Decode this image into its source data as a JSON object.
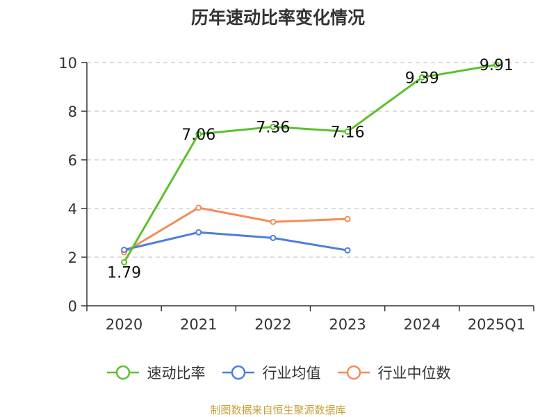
{
  "chart_data": {
    "type": "line",
    "title": "历年速动比率变化情况",
    "categories": [
      "2020",
      "2021",
      "2022",
      "2023",
      "2024",
      "2025Q1"
    ],
    "series": [
      {
        "name": "速动比率",
        "color": "#5cc02c",
        "values": [
          1.79,
          7.06,
          7.36,
          7.16,
          9.39,
          9.91
        ],
        "labels": [
          "1.79",
          "7.06",
          "7.36",
          "7.16",
          "9.39",
          "9.91"
        ]
      },
      {
        "name": "行业均值",
        "color": "#4a7fdc",
        "values": [
          2.3,
          3.02,
          2.79,
          2.28,
          null,
          null
        ]
      },
      {
        "name": "行业中位数",
        "color": "#f58b58",
        "values": [
          2.2,
          4.03,
          3.45,
          3.57,
          null,
          null
        ]
      }
    ],
    "ylim": [
      0,
      10
    ],
    "yticks": [
      "0",
      "2",
      "4",
      "6",
      "8",
      "10"
    ],
    "xlabel": "",
    "ylabel": "",
    "grid": true,
    "legend_position": "bottom"
  },
  "source_note": "制图数据来自恒生聚源数据库"
}
